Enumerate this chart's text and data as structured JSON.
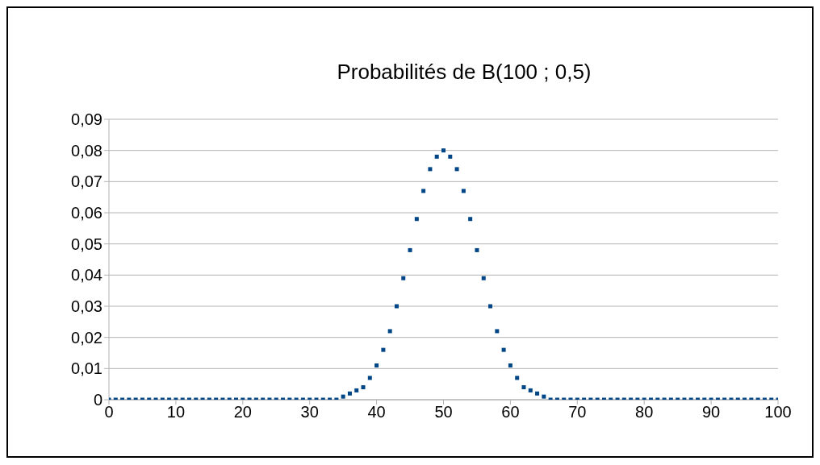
{
  "chart_data": {
    "type": "scatter",
    "title": "Probabilités de B(100 ; 0,5)",
    "x": [
      0,
      1,
      2,
      3,
      4,
      5,
      6,
      7,
      8,
      9,
      10,
      11,
      12,
      13,
      14,
      15,
      16,
      17,
      18,
      19,
      20,
      21,
      22,
      23,
      24,
      25,
      26,
      27,
      28,
      29,
      30,
      31,
      32,
      33,
      34,
      35,
      36,
      37,
      38,
      39,
      40,
      41,
      42,
      43,
      44,
      45,
      46,
      47,
      48,
      49,
      50,
      51,
      52,
      53,
      54,
      55,
      56,
      57,
      58,
      59,
      60,
      61,
      62,
      63,
      64,
      65,
      66,
      67,
      68,
      69,
      70,
      71,
      72,
      73,
      74,
      75,
      76,
      77,
      78,
      79,
      80,
      81,
      82,
      83,
      84,
      85,
      86,
      87,
      88,
      89,
      90,
      91,
      92,
      93,
      94,
      95,
      96,
      97,
      98,
      99,
      100
    ],
    "series": [
      {
        "color": "#004586",
        "values": [
          0,
          0,
          0,
          0,
          0,
          0,
          0,
          0,
          0,
          0,
          0,
          0,
          0,
          0,
          0,
          0,
          0,
          0,
          0,
          0,
          0,
          0,
          0,
          0,
          0,
          0,
          0,
          0,
          0,
          0,
          0,
          0,
          0,
          0,
          0,
          0.001,
          0.002,
          0.003,
          0.004,
          0.007,
          0.011,
          0.016,
          0.022,
          0.03,
          0.039,
          0.048,
          0.058,
          0.067,
          0.074,
          0.078,
          0.08,
          0.078,
          0.074,
          0.067,
          0.058,
          0.048,
          0.039,
          0.03,
          0.022,
          0.016,
          0.011,
          0.007,
          0.004,
          0.003,
          0.002,
          0.001,
          0,
          0,
          0,
          0,
          0,
          0,
          0,
          0,
          0,
          0,
          0,
          0,
          0,
          0,
          0,
          0,
          0,
          0,
          0,
          0,
          0,
          0,
          0,
          0,
          0,
          0,
          0,
          0,
          0,
          0,
          0,
          0,
          0,
          0,
          0
        ]
      }
    ],
    "xlim": [
      0,
      100
    ],
    "xticks": [
      0,
      10,
      20,
      30,
      40,
      50,
      60,
      70,
      80,
      90,
      100
    ],
    "ylim": [
      0,
      0.09
    ],
    "yticks": [
      0,
      {
        "value": 0.01,
        "label": "0,01"
      },
      {
        "value": 0.02,
        "label": "0,02"
      },
      {
        "value": 0.03,
        "label": "0,03"
      },
      {
        "value": 0.04,
        "label": "0,04"
      },
      {
        "value": 0.05,
        "label": "0,05"
      },
      {
        "value": 0.06,
        "label": "0,06"
      },
      {
        "value": 0.07,
        "label": "0,07"
      },
      {
        "value": 0.08,
        "label": "0,08"
      },
      {
        "value": 0.09,
        "label": "0,09"
      }
    ],
    "grid": "y",
    "marker": "square"
  }
}
